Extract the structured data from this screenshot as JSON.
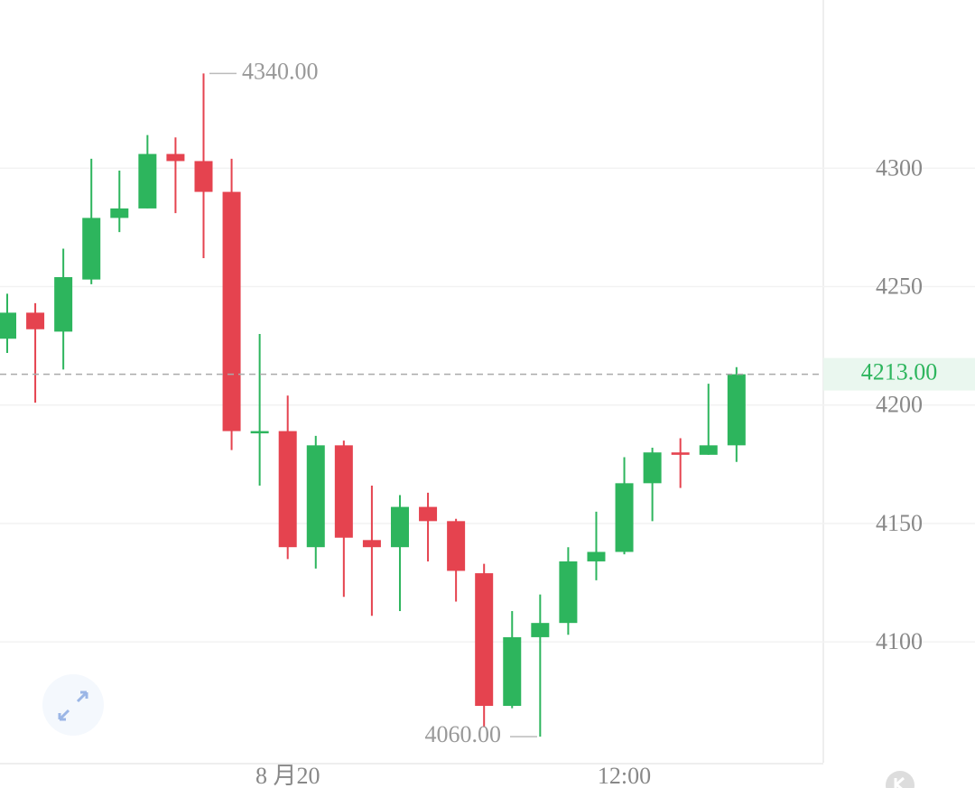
{
  "chart_data": {
    "type": "candlestick",
    "categories": [
      null,
      null,
      null,
      null,
      null,
      null,
      null,
      null,
      null,
      null,
      "8 月20",
      null,
      null,
      null,
      null,
      null,
      null,
      null,
      null,
      null,
      null,
      null,
      "12:00",
      null,
      null,
      null,
      null
    ],
    "open": [
      4228,
      4239,
      4231,
      4253,
      4279,
      4283,
      4306,
      4303,
      4290,
      4189,
      4189,
      4140,
      4183,
      4143,
      4140,
      4157,
      4151,
      4129,
      4073,
      4102,
      4108,
      4134,
      4138,
      4167,
      4180,
      4179,
      4183
    ],
    "high": [
      4247,
      4243,
      4266,
      4304,
      4299,
      4314,
      4313,
      4340,
      4304,
      4230,
      4204,
      4187,
      4185,
      4166,
      4162,
      4163,
      4152,
      4133,
      4113,
      4120,
      4140,
      4155,
      4178,
      4182,
      4186,
      4209,
      4216
    ],
    "low": [
      4222,
      4201,
      4215,
      4251,
      4273,
      4283,
      4281,
      4262,
      4181,
      4166,
      4135,
      4131,
      4119,
      4111,
      4113,
      4134,
      4117,
      4064,
      4072,
      4060,
      4103,
      4126,
      4137,
      4151,
      4165,
      4179,
      4176
    ],
    "close": [
      4239,
      4232,
      4254,
      4279,
      4283,
      4306,
      4303,
      4290,
      4189,
      4189,
      4140,
      4183,
      4144,
      4140,
      4157,
      4151,
      4130,
      4073,
      4102,
      4108,
      4134,
      4138,
      4167,
      4180,
      4179,
      4183,
      4213
    ],
    "up_color": "#2db55d",
    "down_color": "#e5434f",
    "ylim": [
      4049,
      4371
    ],
    "yticks": [
      4100,
      4150,
      4200,
      4250,
      4300
    ],
    "grid": true,
    "high_label": {
      "value": 4340,
      "label": "4340.00"
    },
    "low_label": {
      "value": 4060,
      "label": "4060.00"
    },
    "last_price": {
      "value": 4213,
      "label": "4213.00"
    }
  }
}
